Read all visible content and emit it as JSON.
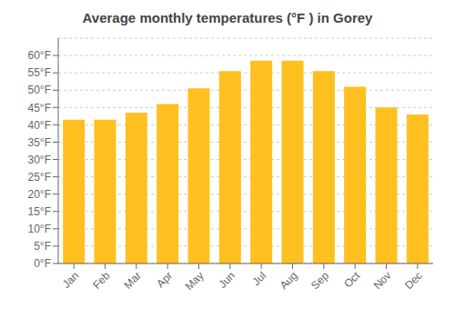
{
  "chart_data": {
    "type": "bar",
    "title": "Average monthly temperatures (°F ) in Gorey",
    "categories": [
      "Jan",
      "Feb",
      "Mar",
      "Apr",
      "May",
      "Jun",
      "Jul",
      "Aug",
      "Sep",
      "Oct",
      "Nov",
      "Dec"
    ],
    "values": [
      41.5,
      41.5,
      43.5,
      46,
      50.5,
      55.5,
      58.5,
      58.5,
      55.5,
      51,
      45,
      43
    ],
    "color": "#FFC020",
    "ylim": [
      0,
      65
    ],
    "yticks": [
      {
        "value": 0,
        "label": "0°F"
      },
      {
        "value": 5,
        "label": "5°F"
      },
      {
        "value": 10,
        "label": "10°F"
      },
      {
        "value": 15,
        "label": "15°F"
      },
      {
        "value": 20,
        "label": "20°F"
      },
      {
        "value": 25,
        "label": "25°F"
      },
      {
        "value": 30,
        "label": "30°F"
      },
      {
        "value": 35,
        "label": "35°F"
      },
      {
        "value": 40,
        "label": "40°F"
      },
      {
        "value": 45,
        "label": "45°F"
      },
      {
        "value": 50,
        "label": "50°F"
      },
      {
        "value": 55,
        "label": "55°F"
      },
      {
        "value": 60,
        "label": "60°F"
      }
    ],
    "grid": true
  }
}
